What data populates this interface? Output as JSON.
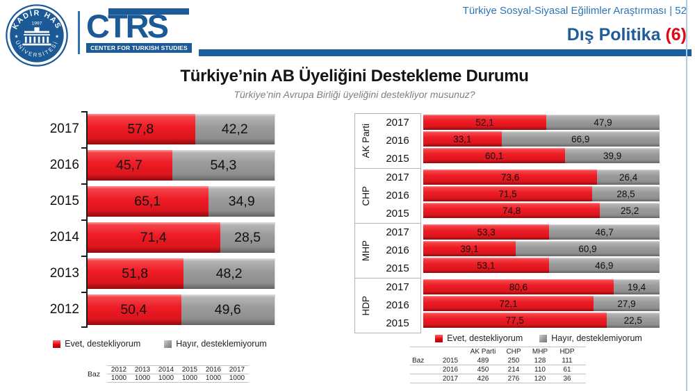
{
  "header": {
    "study_title": "Türkiye Sosyal-Siyasal Eğilimler Araştırması | 52",
    "section_title": "Dış Politika ",
    "section_number": "(6)"
  },
  "logo": {
    "seal_top": "KADİR HAS",
    "seal_year": "1997",
    "seal_bottom": "ÜNİVERSİTESİ",
    "ctrs": "CTRS",
    "ctrs_sub": "CENTER FOR TURKISH STUDIES"
  },
  "title": "Türkiye’nin AB Üyeliğini Destekleme Durumu",
  "subtitle": "Türkiye’nin Avrupa Birliği üyeliğini destekliyor musunuz?",
  "legend": {
    "evet": "Evet, destekliyorum",
    "hayir": "Hayır, desteklemiyorum"
  },
  "colors": {
    "evet_red": "#ee1c25",
    "hayir_gray": "#9b9b9b",
    "brand_blue": "#1c5f9e",
    "accent_red": "#e30613"
  },
  "chart_data": [
    {
      "type": "bar",
      "orientation": "horizontal",
      "stacked": true,
      "unit": "percent",
      "xlim": [
        0,
        100
      ],
      "categories": [
        "2017",
        "2016",
        "2015",
        "2014",
        "2013",
        "2012"
      ],
      "series": [
        {
          "name": "Evet, destekliyorum",
          "color": "#ee1c25",
          "values": [
            57.8,
            45.7,
            65.1,
            71.4,
            51.8,
            50.4
          ],
          "labels": [
            "57,8",
            "45,7",
            "65,1",
            "71,4",
            "51,8",
            "50,4"
          ]
        },
        {
          "name": "Hayır, desteklemiyorum",
          "color": "#9b9b9b",
          "values": [
            42.2,
            54.3,
            34.9,
            28.5,
            48.2,
            49.6
          ],
          "labels": [
            "42,2",
            "54,3",
            "34,9",
            "28,5",
            "48,2",
            "49,6"
          ]
        }
      ]
    },
    {
      "type": "bar",
      "orientation": "horizontal",
      "stacked": true,
      "unit": "percent",
      "xlim": [
        0,
        100
      ],
      "groups": [
        {
          "party": "AK Parti",
          "rows": [
            {
              "year": "2017",
              "evet": 52.1,
              "hayir": 47.9,
              "evet_label": "52,1",
              "hayir_label": "47,9"
            },
            {
              "year": "2016",
              "evet": 33.1,
              "hayir": 66.9,
              "evet_label": "33,1",
              "hayir_label": "66,9"
            },
            {
              "year": "2015",
              "evet": 60.1,
              "hayir": 39.9,
              "evet_label": "60,1",
              "hayir_label": "39,9"
            }
          ]
        },
        {
          "party": "CHP",
          "rows": [
            {
              "year": "2017",
              "evet": 73.6,
              "hayir": 26.4,
              "evet_label": "73,6",
              "hayir_label": "26,4"
            },
            {
              "year": "2016",
              "evet": 71.5,
              "hayir": 28.5,
              "evet_label": "71,5",
              "hayir_label": "28,5"
            },
            {
              "year": "2015",
              "evet": 74.8,
              "hayir": 25.2,
              "evet_label": "74,8",
              "hayir_label": "25,2"
            }
          ]
        },
        {
          "party": "MHP",
          "rows": [
            {
              "year": "2017",
              "evet": 53.3,
              "hayir": 46.7,
              "evet_label": "53,3",
              "hayir_label": "46,7"
            },
            {
              "year": "2016",
              "evet": 39.1,
              "hayir": 60.9,
              "evet_label": "39,1",
              "hayir_label": "60,9"
            },
            {
              "year": "2015",
              "evet": 53.1,
              "hayir": 46.9,
              "evet_label": "53,1",
              "hayir_label": "46,9"
            }
          ]
        },
        {
          "party": "HDP",
          "rows": [
            {
              "year": "2017",
              "evet": 80.6,
              "hayir": 19.4,
              "evet_label": "80,6",
              "hayir_label": "19,4"
            },
            {
              "year": "2016",
              "evet": 72.1,
              "hayir": 27.9,
              "evet_label": "72,1",
              "hayir_label": "27,9"
            },
            {
              "year": "2015",
              "evet": 77.5,
              "hayir": 22.5,
              "evet_label": "77,5",
              "hayir_label": "22,5"
            }
          ]
        }
      ]
    }
  ],
  "baz_left": {
    "label": "Baz",
    "years": [
      "2012",
      "2013",
      "2014",
      "2015",
      "2016",
      "2017"
    ],
    "values": [
      "1000",
      "1000",
      "1000",
      "1000",
      "1000",
      "1000"
    ]
  },
  "baz_right": {
    "label": "Baz",
    "headers": [
      "AK Parti",
      "CHP",
      "MHP",
      "HDP"
    ],
    "rows": [
      {
        "year": "2015",
        "values": [
          "489",
          "250",
          "128",
          "111"
        ]
      },
      {
        "year": "2016",
        "values": [
          "450",
          "214",
          "110",
          "61"
        ]
      },
      {
        "year": "2017",
        "values": [
          "426",
          "276",
          "120",
          "36"
        ]
      }
    ]
  }
}
